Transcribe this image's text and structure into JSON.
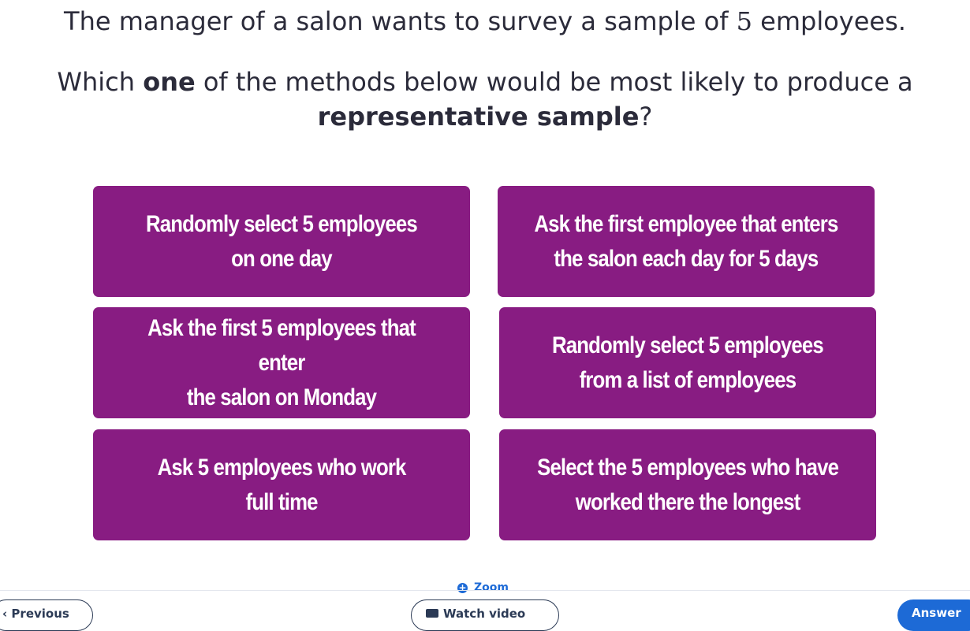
{
  "question": {
    "line1_before": "The manager of a salon wants to survey a sample of ",
    "line1_number": "5",
    "line1_after": " employees.",
    "line2_prefix": "Which ",
    "line2_bold1": "one",
    "line2_middle": " of the methods below would be most likely to produce a ",
    "line2_bold2": "representative sample",
    "line2_suffix": "?"
  },
  "answers": [
    {
      "line1": "Randomly select 5 employees",
      "line2": "on one day"
    },
    {
      "line1": "Ask the first employee that enters",
      "line2": "the salon each day for 5 days"
    },
    {
      "line1": "Ask the first 5 employees that enter",
      "line2": "the salon on Monday"
    },
    {
      "line1": "Randomly select 5 employees",
      "line2": "from a list of employees"
    },
    {
      "line1": "Ask 5 employees who work",
      "line2": "full time"
    },
    {
      "line1": "Select the 5 employees who have",
      "line2": "worked there the longest"
    }
  ],
  "footer": {
    "zoom_label": "Zoom",
    "zoom_icon": "zoom-in-icon",
    "previous_label": "Previous",
    "previous_icon": "chevron-left-icon",
    "watch_video_label": "Watch video",
    "watch_video_icon": "video-icon",
    "answer_label": "Answer"
  },
  "colors": {
    "answer_background": "#881c82",
    "accent": "#1d6ad6",
    "text": "#2b2b3a"
  }
}
